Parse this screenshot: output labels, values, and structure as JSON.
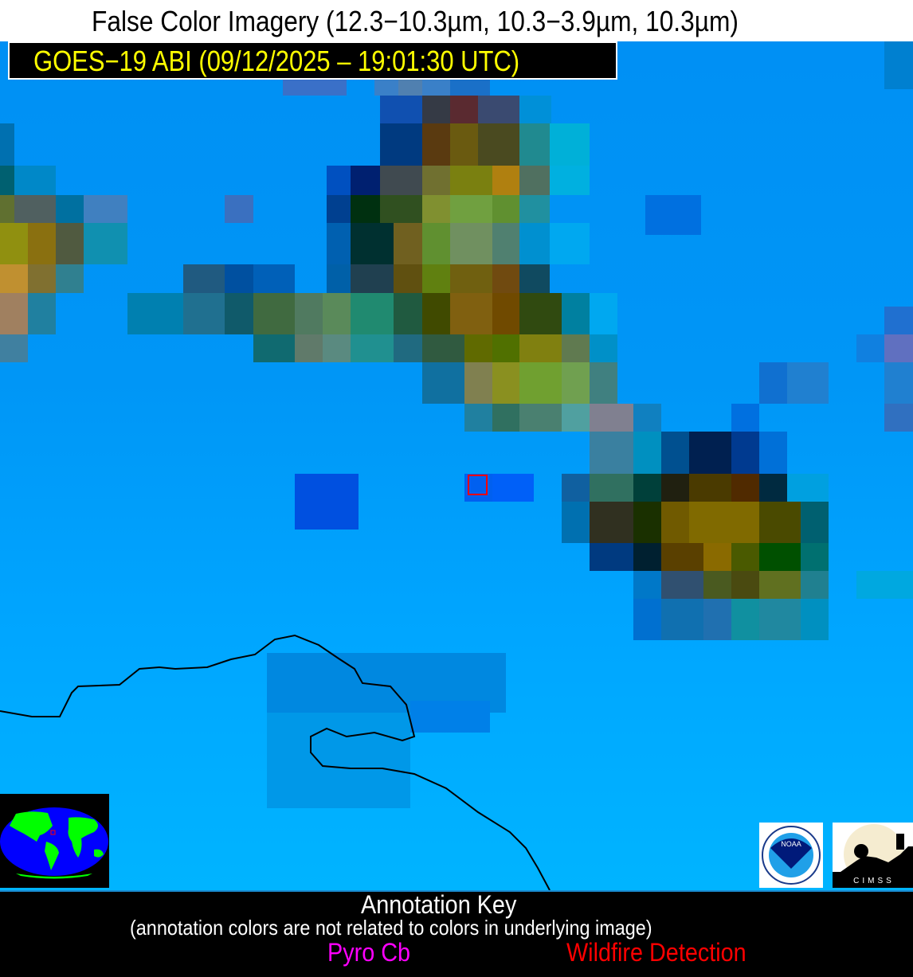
{
  "header": {
    "title": "False Color Imagery (12.3−10.3µm, 10.3−3.9µm, 10.3µm)",
    "satellite_label": "GOES−19 ABI (09/12/2025 – 19:01:30 UTC)",
    "satellite_label_color": "#ffff00"
  },
  "inset": {
    "type": "globe-locator",
    "land_color": "#00ff00",
    "ocean_color": "#0000ff",
    "marker_color": "#ff0000"
  },
  "logos": {
    "noaa": "NOAA",
    "cimss": "CIMSS"
  },
  "annotation_key": {
    "title": "Annotation Key",
    "subtitle": "(annotation colors are not related to colors in underlying image)",
    "items": [
      {
        "label": "Pyro Cb",
        "color": "#ff00ff"
      },
      {
        "label": "Wildfire Detection",
        "color": "#ff0000"
      }
    ]
  },
  "detection_box_color": "#ff0000"
}
